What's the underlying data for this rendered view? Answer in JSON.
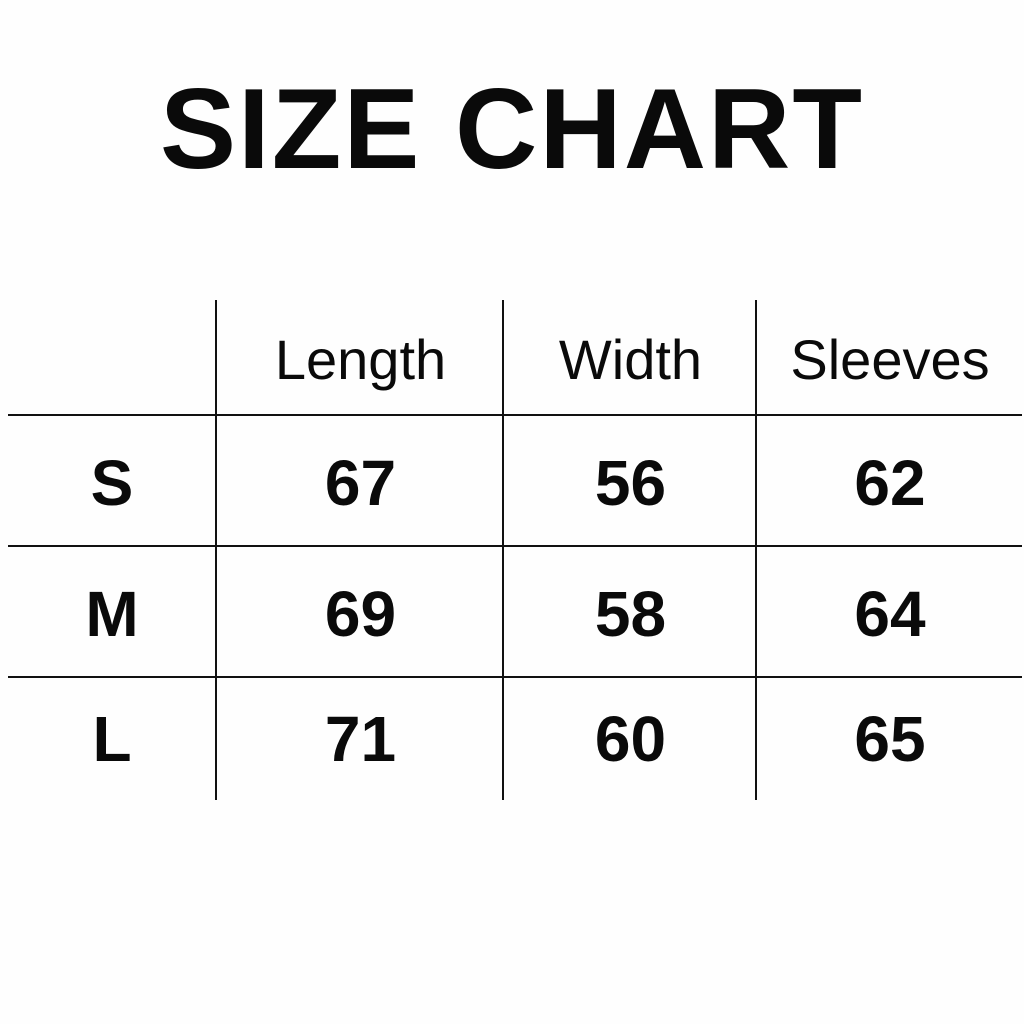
{
  "title": "SIZE CHART",
  "table": {
    "headers": [
      "",
      "Length",
      "Width",
      "Sleeves"
    ],
    "rows": [
      {
        "size": "S",
        "length": "67",
        "width": "56",
        "sleeves": "62"
      },
      {
        "size": "M",
        "length": "69",
        "width": "58",
        "sleeves": "64"
      },
      {
        "size": "L",
        "length": "71",
        "width": "60",
        "sleeves": "65"
      }
    ]
  }
}
